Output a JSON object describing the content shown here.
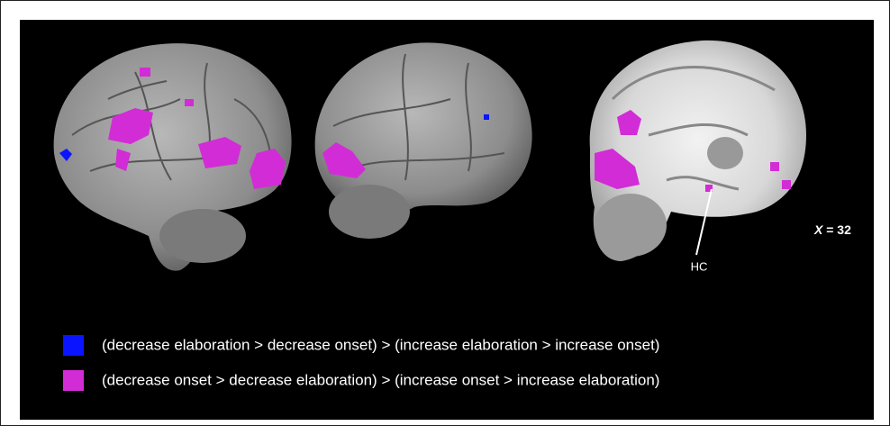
{
  "figure": {
    "annotations": {
      "hc": "HC",
      "slice_axis": "X",
      "slice_value": "= 32"
    },
    "legend": [
      {
        "color": "#0a14ff",
        "label": "(decrease elaboration > decrease onset) > (increase elaboration > increase onset)"
      },
      {
        "color": "#d22cd6",
        "label": "(decrease onset > decrease elaboration) > (increase onset > increase elaboration)"
      }
    ]
  }
}
